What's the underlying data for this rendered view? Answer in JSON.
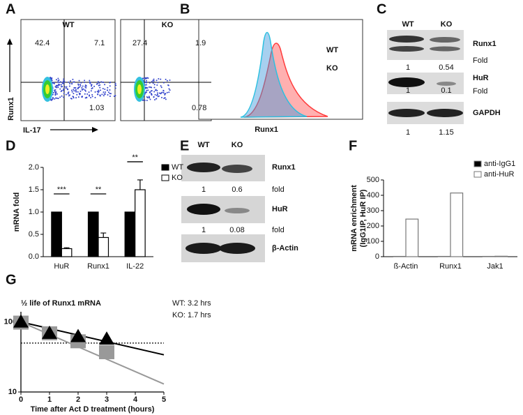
{
  "panel_labels": [
    "A",
    "B",
    "C",
    "D",
    "E",
    "F",
    "G"
  ],
  "flow": {
    "y_label": "Runx1",
    "x_label": "IL-17",
    "plots": [
      {
        "title": "WT",
        "quadrants": [
          42.4,
          7.1,
          1.03
        ]
      },
      {
        "title": "KO",
        "quadrants": [
          27.4,
          1.9,
          0.78
        ]
      }
    ]
  },
  "histogram": {
    "x_label": "Runx1",
    "legend": [
      {
        "name": "WT",
        "color": "#ff3b3b"
      },
      {
        "name": "KO",
        "color": "#2cc0e0"
      }
    ]
  },
  "blot_c": {
    "lanes": [
      "WT",
      "KO"
    ],
    "rows": [
      {
        "label": "Runx1",
        "values": [
          1,
          0.54
        ],
        "unit": "Fold"
      },
      {
        "label": "HuR",
        "values": [
          1,
          0.1
        ],
        "unit": "Fold"
      },
      {
        "label": "GAPDH",
        "values": [
          1,
          1.15
        ]
      }
    ]
  },
  "blot_e": {
    "lanes": [
      "WT",
      "KO"
    ],
    "rows": [
      {
        "label": "Runx1",
        "values": [
          1,
          0.6
        ],
        "unit": "fold"
      },
      {
        "label": "HuR",
        "values": [
          1,
          0.08
        ],
        "unit": "fold"
      },
      {
        "label": "β-Actin"
      }
    ]
  },
  "chart_data": [
    {
      "type": "bar",
      "ylabel": "mRNA fold",
      "categories": [
        "HuR",
        "Runx1",
        "IL-22"
      ],
      "series": [
        {
          "name": "WT",
          "color": "#000000",
          "values": [
            1,
            1,
            1
          ]
        },
        {
          "name": "KO",
          "color": "#ffffff",
          "values": [
            0.18,
            0.43,
            1.5
          ],
          "errors": [
            0.02,
            0.1,
            0.22
          ]
        }
      ],
      "edgecolor": "#000000",
      "ylim": [
        0,
        2
      ],
      "yticks": [
        {
          "value": 0,
          "label": "0.0"
        },
        {
          "value": 0.5,
          "label": "0.5"
        },
        {
          "value": 1,
          "label": "1.0"
        },
        {
          "value": 1.5,
          "label": "1.5"
        },
        {
          "value": 2,
          "label": "2.0"
        }
      ],
      "annotations": [
        "***",
        "**",
        "**"
      ]
    },
    {
      "type": "bar",
      "ylabel": [
        "mRNA enrichment",
        "(IgG1IP, HuR IP)"
      ],
      "categories": [
        "ß-Actin",
        "Runx1",
        "Jak1"
      ],
      "series": [
        {
          "name": "anti-IgG1",
          "color": "#000000",
          "values": [
            2,
            2,
            2
          ]
        },
        {
          "name": "anti-HuR",
          "color": "#ffffff",
          "values": [
            245,
            415,
            3
          ]
        }
      ],
      "edgecolor": "#777777",
      "ylim": [
        0,
        500
      ],
      "yticks": [
        0,
        100,
        200,
        300,
        400,
        500
      ]
    },
    {
      "type": "line",
      "title": "½ life of Runx1 mRNA",
      "annotations": [
        "WT: 3.2 hrs",
        "KO:  1.7 hrs"
      ],
      "xlabel": "Time after Act D treatment (hours)",
      "x": [
        0,
        1,
        2,
        3
      ],
      "series": [
        {
          "color": "#000000",
          "marker": "triangle",
          "values": [
            100,
            69,
            62,
            57
          ]
        },
        {
          "color": "#999999",
          "marker": "square",
          "values": [
            98,
            69,
            53,
            37
          ]
        }
      ],
      "fit_lines": [
        {
          "color": "#000000",
          "x": [
            0,
            5
          ],
          "values": [
            100,
            34
          ]
        },
        {
          "color": "#999999",
          "x": [
            0,
            5
          ],
          "values": [
            100,
            13
          ]
        }
      ],
      "reference_line": 50,
      "yscale": "log",
      "xlim": [
        0,
        5
      ],
      "ylim": [
        10,
        140
      ],
      "xticks": [
        0,
        1,
        2,
        3,
        4,
        5
      ],
      "yticks": [
        10,
        100
      ]
    }
  ]
}
